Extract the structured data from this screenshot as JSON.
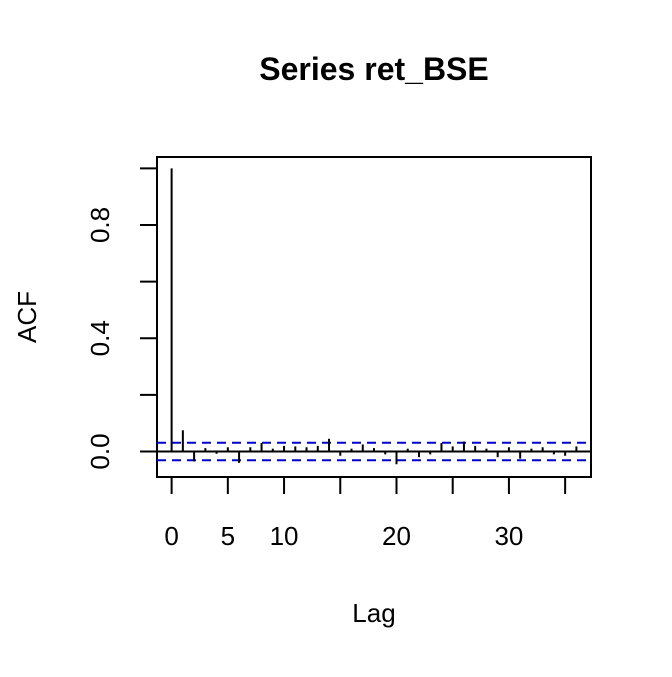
{
  "chart_data": {
    "type": "bar",
    "title": "Series  ret_BSE",
    "xlabel": "Lag",
    "ylabel": "ACF",
    "xlim": [
      -1.3,
      37.3
    ],
    "ylim": [
      -0.09,
      1.04
    ],
    "x_ticks": [
      0,
      5,
      10,
      15,
      20,
      25,
      30,
      35
    ],
    "x_tick_labels": [
      "0",
      "5",
      "10",
      "",
      "20",
      "",
      "30",
      ""
    ],
    "y_ticks": [
      0.0,
      0.2,
      0.4,
      0.6,
      0.8,
      1.0
    ],
    "y_tick_labels": [
      "0.0",
      "",
      "0.4",
      "",
      "0.8",
      ""
    ],
    "grid": false,
    "series": [
      {
        "x": [
          0,
          1,
          2,
          3,
          4,
          5,
          6,
          7,
          8,
          9,
          10,
          11,
          12,
          13,
          14,
          15,
          16,
          17,
          18,
          19,
          20,
          21,
          22,
          23,
          24,
          25,
          26,
          27,
          28,
          29,
          30,
          31,
          32,
          33,
          34,
          35,
          36
        ],
        "values": [
          1.0,
          0.075,
          -0.035,
          0.012,
          -0.008,
          0.015,
          -0.04,
          0.015,
          0.03,
          0.01,
          0.02,
          0.018,
          0.015,
          0.02,
          0.045,
          -0.015,
          0.01,
          0.025,
          0.012,
          -0.01,
          -0.045,
          0.01,
          -0.02,
          -0.01,
          0.03,
          0.018,
          0.035,
          0.02,
          0.01,
          -0.02,
          0.015,
          -0.025,
          0.01,
          0.015,
          -0.01,
          -0.015,
          0.018
        ]
      }
    ],
    "confidence_band": [
      0.031,
      -0.031
    ],
    "band_color": "#0000CD",
    "line_color": "#000000"
  }
}
